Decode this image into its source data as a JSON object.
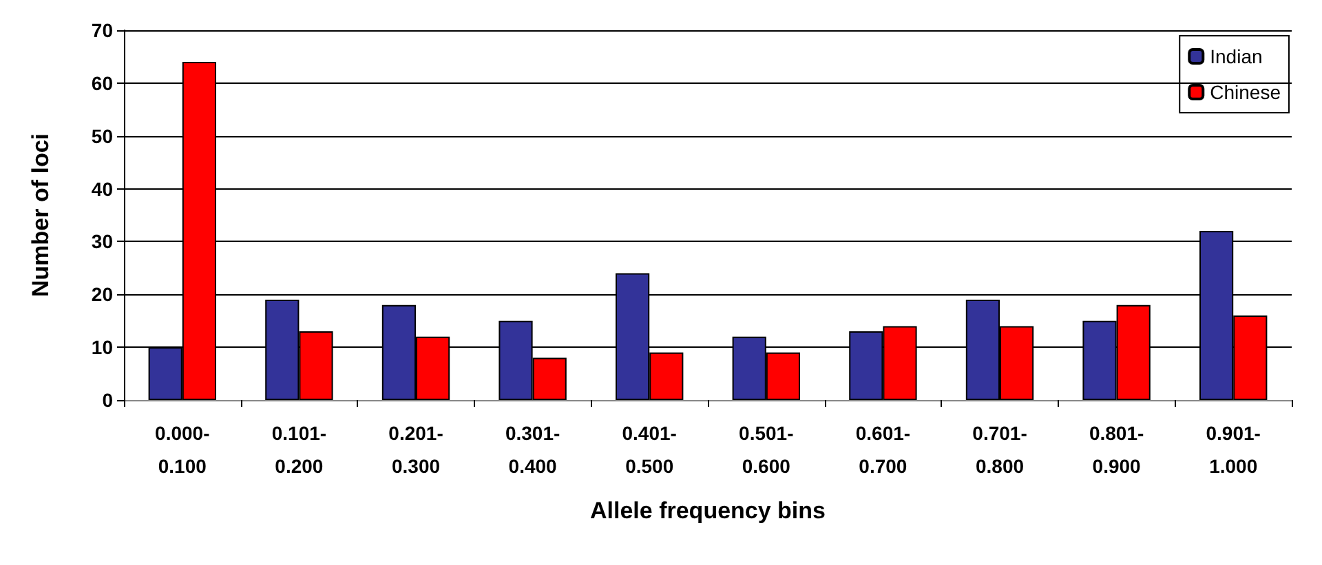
{
  "chart_data": {
    "type": "bar",
    "xlabel": "Allele frequency bins",
    "ylabel": "Number of loci",
    "categories": [
      "0.000-\n0.100",
      "0.101-\n0.200",
      "0.201-\n0.300",
      "0.301-\n0.400",
      "0.401-\n0.500",
      "0.501-\n0.600",
      "0.601-\n0.700",
      "0.701-\n0.800",
      "0.801-\n0.900",
      "0.901-\n1.000"
    ],
    "series": [
      {
        "name": "Indian",
        "color": "#333399",
        "values": [
          10,
          19,
          18,
          15,
          24,
          12,
          13,
          19,
          15,
          32
        ]
      },
      {
        "name": "Chinese",
        "color": "#ff0000",
        "values": [
          64,
          13,
          12,
          8,
          9,
          9,
          14,
          14,
          18,
          16
        ]
      }
    ],
    "ylim": [
      0,
      70
    ],
    "yticks": [
      0,
      10,
      20,
      30,
      40,
      50,
      60,
      70
    ],
    "grid": "y",
    "legend": "top right"
  }
}
